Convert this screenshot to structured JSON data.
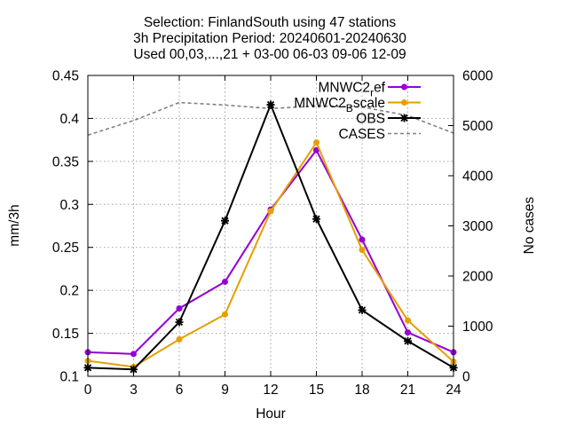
{
  "chart_data": {
    "type": "line",
    "title_lines": [
      "Selection: FinlandSouth using    47 stations",
      "3h Precipitation   Period: 20240601-20240630",
      "Used 00,03,...,21 + 03-00 06-03 09-06 12-09"
    ],
    "xlabel": "Hour",
    "ylabel": "mm/3h",
    "y2label": "No cases",
    "x": [
      0,
      3,
      6,
      9,
      12,
      15,
      18,
      21,
      24
    ],
    "xlim": [
      0,
      24
    ],
    "ylim": [
      0.1,
      0.45
    ],
    "y2lim": [
      0,
      6000
    ],
    "xticks": [
      0,
      3,
      6,
      9,
      12,
      15,
      18,
      21,
      24
    ],
    "yticks": [
      0.1,
      0.15,
      0.2,
      0.25,
      0.3,
      0.35,
      0.4,
      0.45
    ],
    "yticklabels": [
      "0.1",
      "0.15",
      "0.2",
      "0.25",
      "0.3",
      "0.35",
      "0.4",
      "0.45"
    ],
    "y2ticks": [
      0,
      1000,
      2000,
      3000,
      4000,
      5000,
      6000
    ],
    "grid": true,
    "legend_position": "top-right",
    "series": [
      {
        "name": "MNWC2_ref",
        "legend": {
          "base": "MNWC2",
          "sub": "r",
          "tail": "ef"
        },
        "color": "#9400d3",
        "axis": "y1",
        "marker": "point",
        "values": [
          0.128,
          0.126,
          0.179,
          0.21,
          0.294,
          0.363,
          0.259,
          0.151,
          0.128
        ]
      },
      {
        "name": "MNWC2_Bscale",
        "legend": {
          "base": "MNWC2",
          "sub": "B",
          "tail": "scale"
        },
        "color": "#e69f00",
        "axis": "y1",
        "marker": "point",
        "values": [
          0.118,
          0.111,
          0.143,
          0.172,
          0.292,
          0.372,
          0.247,
          0.165,
          0.117
        ]
      },
      {
        "name": "OBS",
        "legend": {
          "base": "OBS",
          "sub": "",
          "tail": ""
        },
        "color": "#000000",
        "axis": "y1",
        "marker": "star",
        "values": [
          0.11,
          0.108,
          0.163,
          0.281,
          0.416,
          0.283,
          0.177,
          0.141,
          0.11
        ]
      },
      {
        "name": "CASES",
        "legend": {
          "base": "CASES",
          "sub": "",
          "tail": ""
        },
        "color": "#808080",
        "axis": "y2",
        "marker": "none",
        "dashed": true,
        "values": [
          4810,
          5100,
          5460,
          5410,
          5340,
          5390,
          5370,
          5200,
          4850
        ]
      }
    ]
  }
}
